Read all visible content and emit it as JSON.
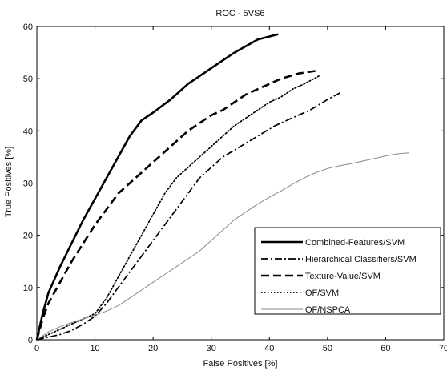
{
  "chart_data": {
    "type": "line",
    "title": "ROC - 5VS6",
    "xlabel": "False Positives [%]",
    "ylabel": "True Positives [%]",
    "xlim": [
      0,
      70
    ],
    "ylim": [
      0,
      60
    ],
    "xticks": [
      0,
      10,
      20,
      30,
      40,
      50,
      60,
      70
    ],
    "yticks": [
      0,
      10,
      20,
      30,
      40,
      50,
      60
    ],
    "grid": false,
    "legend_position": "bottom-right",
    "series": [
      {
        "name": "Combined-Features/SVM",
        "style": "solid",
        "weight": "heavy",
        "color": "#000000",
        "x": [
          0,
          1,
          2,
          4,
          6,
          8,
          10,
          12,
          14,
          16,
          18,
          20,
          23,
          26,
          30,
          34,
          38,
          41.5
        ],
        "y": [
          0,
          5,
          9,
          14,
          18.5,
          23,
          27,
          31,
          35,
          39,
          42,
          43.5,
          46,
          49,
          52,
          55,
          57.5,
          58.5
        ]
      },
      {
        "name": "Hierarchical Classifiers/SVM",
        "style": "dashdot",
        "weight": "medium",
        "color": "#000000",
        "x": [
          0,
          2,
          4,
          6,
          8,
          10,
          12,
          14,
          16,
          18,
          20,
          22,
          24,
          26,
          28,
          30,
          32,
          35,
          38,
          41,
          44,
          47,
          50,
          52.5
        ],
        "y": [
          0,
          0.5,
          1,
          1.8,
          3,
          4.5,
          7,
          10,
          13,
          16,
          19,
          22,
          25,
          28,
          31,
          33,
          35,
          37,
          39,
          41,
          42.5,
          44,
          46,
          47.5
        ]
      },
      {
        "name": "Texture-Value/SVM",
        "style": "dashed",
        "weight": "heavy",
        "color": "#000000",
        "x": [
          0,
          1,
          2,
          4,
          6,
          8,
          10,
          12,
          14,
          16,
          18,
          20,
          22,
          24,
          26,
          28,
          30,
          32,
          34,
          36,
          38,
          40,
          42,
          45,
          48
        ],
        "y": [
          0,
          4,
          7,
          11,
          15,
          18.5,
          22,
          25,
          28,
          30,
          32,
          34,
          36,
          38,
          40,
          41.5,
          43,
          44,
          45.5,
          47,
          48,
          49,
          50,
          51,
          51.5
        ]
      },
      {
        "name": "OF/SVM",
        "style": "dotted",
        "weight": "medium",
        "color": "#000000",
        "x": [
          0,
          2,
          4,
          6,
          8,
          10,
          12,
          14,
          16,
          18,
          20,
          22,
          24,
          26,
          28,
          30,
          32,
          34,
          36,
          38,
          40,
          42,
          44,
          46,
          48.5
        ],
        "y": [
          0,
          1,
          2,
          3,
          4,
          5,
          8,
          12,
          16,
          20,
          24,
          28,
          31,
          33,
          35,
          37,
          39,
          41,
          42.5,
          44,
          45.5,
          46.5,
          48,
          49,
          50.5
        ]
      },
      {
        "name": "OF/NSPCA",
        "style": "solid",
        "weight": "thin",
        "color": "#8a8a8a",
        "x": [
          0,
          2,
          4,
          6,
          8,
          10,
          12,
          14,
          16,
          18,
          20,
          22,
          24,
          26,
          28,
          30,
          32,
          34,
          36,
          38,
          40,
          42,
          44,
          46,
          48,
          50,
          52,
          54,
          56,
          58,
          60,
          62,
          64
        ],
        "y": [
          0,
          1.5,
          2.5,
          3.3,
          4,
          4.7,
          5.5,
          6.5,
          8,
          9.5,
          11,
          12.5,
          14,
          15.5,
          17,
          19,
          21,
          23,
          24.5,
          26,
          27.3,
          28.5,
          29.8,
          31,
          32,
          32.8,
          33.3,
          33.7,
          34.2,
          34.7,
          35.2,
          35.6,
          35.8
        ]
      }
    ]
  }
}
